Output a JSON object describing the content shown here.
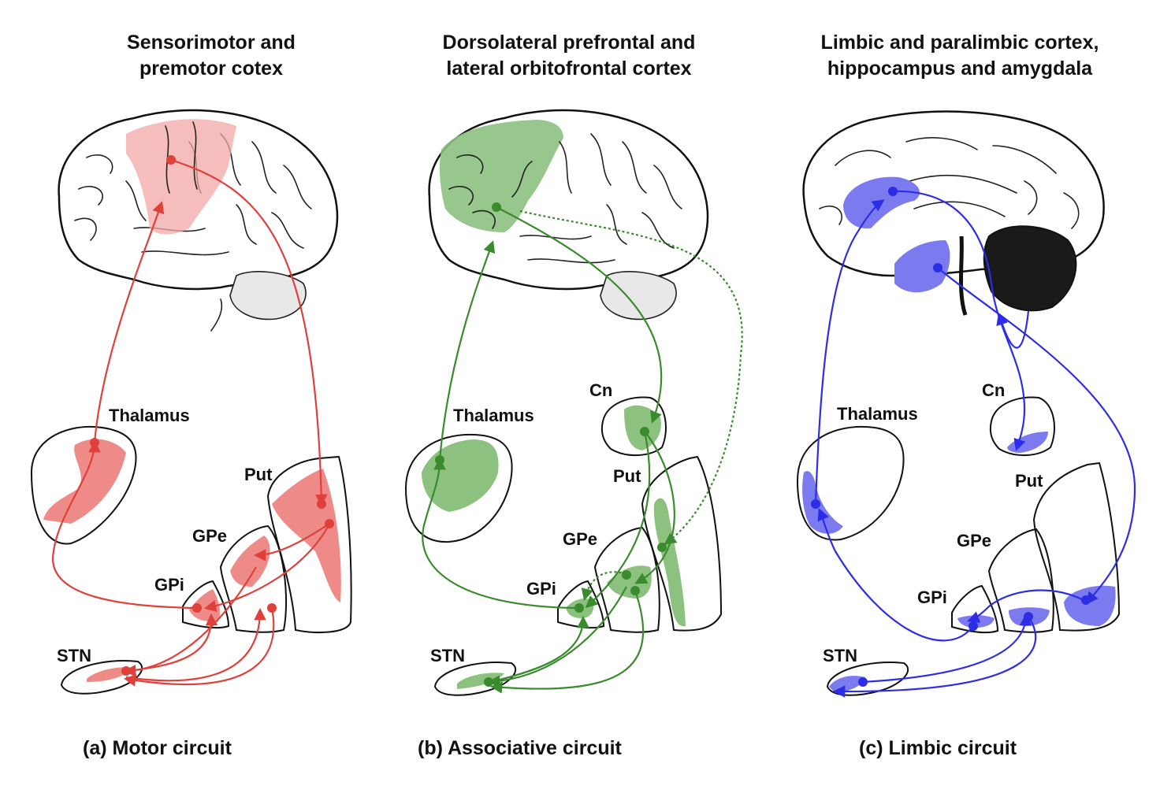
{
  "panels": [
    {
      "id": "a",
      "title_lines": [
        "Sensorimotor and",
        "premotor cotex"
      ],
      "caption": "(a) Motor circuit",
      "color": "#e0403a",
      "fill": "#ee8a88",
      "labels": {
        "thalamus": "Thalamus",
        "put": "Put",
        "gpe": "GPe",
        "gpi": "GPi",
        "stn": "STN"
      }
    },
    {
      "id": "b",
      "title_lines": [
        "Dorsolateral prefrontal and",
        "lateral orbitofrontal cortex"
      ],
      "caption": "(b) Associative circuit",
      "color": "#3a8a2e",
      "fill": "#8cc17f",
      "labels": {
        "thalamus": "Thalamus",
        "cn": "Cn",
        "put": "Put",
        "gpe": "GPe",
        "gpi": "GPi",
        "stn": "STN"
      }
    },
    {
      "id": "c",
      "title_lines": [
        "Limbic and paralimbic cortex,",
        "hippocampus and amygdala"
      ],
      "caption": "(c) Limbic circuit",
      "color": "#2d2de8",
      "fill": "#7b7bef",
      "labels": {
        "thalamus": "Thalamus",
        "cn": "Cn",
        "put": "Put",
        "gpe": "GPe",
        "gpi": "GPi",
        "stn": "STN"
      }
    }
  ]
}
